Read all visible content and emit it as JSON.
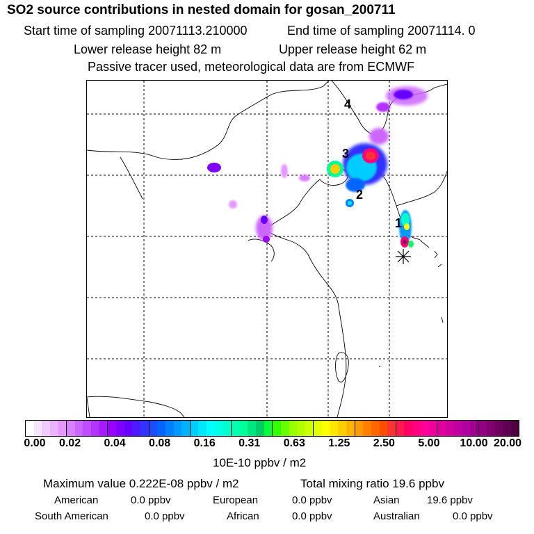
{
  "header": {
    "title": "SO2 source contributions in nested domain for gosan_200711",
    "start_sampling": "Start time of sampling 20071113.210000",
    "end_sampling": "End time of sampling 20071114.     0",
    "lower_release": "Lower release height   82 m",
    "upper_release": "Upper release height   62 m",
    "note": "Passive tracer used, meteorological data are from ECMWF"
  },
  "map": {
    "labels": [
      {
        "text": "1"
      },
      {
        "text": "2"
      },
      {
        "text": "3"
      },
      {
        "text": "4"
      }
    ],
    "receptor_marker": "asterisk-icon"
  },
  "colorbar": {
    "ticks": [
      "0.00",
      "0.02",
      "0.04",
      "0.08",
      "0.16",
      "0.31",
      "0.63",
      "1.25",
      "2.50",
      "5.00",
      "10.00",
      "20.00"
    ],
    "colors": [
      "#ffffff",
      "#f8e6ff",
      "#f2ccff",
      "#ebb3ff",
      "#e599ff",
      "#d980ff",
      "#cc66ff",
      "#bf4dff",
      "#b333ff",
      "#a61aff",
      "#9900ff",
      "#8000ff",
      "#6600ff",
      "#4d1aff",
      "#3333ff",
      "#1a4dff",
      "#0066ff",
      "#0080ff",
      "#0099ff",
      "#00b3ff",
      "#00ccff",
      "#00e6ff",
      "#00ffff",
      "#00ffe6",
      "#00ffcc",
      "#00ffb3",
      "#00ff99",
      "#00e680",
      "#00cc66",
      "#00ff33",
      "#33ff00",
      "#66ff00",
      "#99ff00",
      "#b3ff00",
      "#ccff00",
      "#e6ff00",
      "#ffff00",
      "#ffe600",
      "#ffcc00",
      "#ffb300",
      "#ff9900",
      "#ff8000",
      "#ff6600",
      "#ff4d00",
      "#ff3333",
      "#ff1a4d",
      "#ff0066",
      "#ff0080",
      "#ff0099",
      "#f000a0",
      "#e000a0",
      "#d000a0",
      "#c000a0",
      "#b000a0",
      "#a00090",
      "#900080",
      "#800070",
      "#700060",
      "#600050",
      "#500040"
    ],
    "units": "10E-10 ppbv / m2"
  },
  "summary": {
    "max_value": "Maximum value  0.222E-08 ppbv / m2",
    "total": "Total mixing ratio       19.6 ppbv",
    "sources": [
      {
        "name": "American",
        "value": "0.0 ppbv"
      },
      {
        "name": "European",
        "value": "0.0 ppbv"
      },
      {
        "name": "Asian",
        "value": "19.6 ppbv"
      },
      {
        "name": "South American",
        "value": "0.0 ppbv"
      },
      {
        "name": "African",
        "value": "0.0 ppbv"
      },
      {
        "name": "Australian",
        "value": "0.0 ppbv"
      }
    ]
  }
}
